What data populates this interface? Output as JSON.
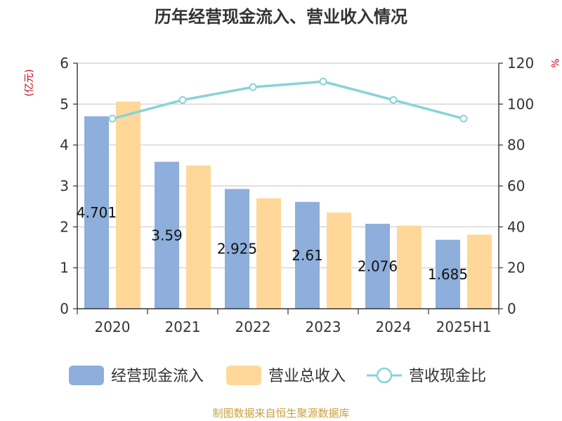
{
  "title": "历年经营现金流入、营业收入情况",
  "source": "制图数据来自恒生聚源数据库",
  "chart_data": {
    "type": "bar",
    "categories": [
      "2020",
      "2021",
      "2022",
      "2023",
      "2024",
      "2025H1"
    ],
    "series": [
      {
        "name": "经营现金流入",
        "type": "bar",
        "axis": "left",
        "color": "#8eaedb",
        "values": [
          4.701,
          3.59,
          2.925,
          2.61,
          2.076,
          1.685
        ],
        "labels": [
          "4.701",
          "3.59",
          "2.925",
          "2.61",
          "2.076",
          "1.685"
        ]
      },
      {
        "name": "营业总收入",
        "type": "bar",
        "axis": "left",
        "color": "#ffd899",
        "values": [
          5.06,
          3.5,
          2.7,
          2.35,
          2.03,
          1.81
        ]
      },
      {
        "name": "营收现金比",
        "type": "line",
        "axis": "right",
        "color": "#88d3d8",
        "values": [
          92.9,
          102.0,
          108.3,
          111.0,
          102.0,
          92.9
        ]
      }
    ],
    "y_left": {
      "unit": "(亿元)",
      "min": 0,
      "max": 6,
      "ticks": [
        "0",
        "1",
        "2",
        "3",
        "4",
        "5",
        "6"
      ]
    },
    "y_right": {
      "unit": "%",
      "min": 0,
      "max": 120,
      "ticks": [
        "0",
        "20",
        "40",
        "60",
        "80",
        "100",
        "120"
      ]
    },
    "grid": true,
    "legend_position": "bottom"
  }
}
